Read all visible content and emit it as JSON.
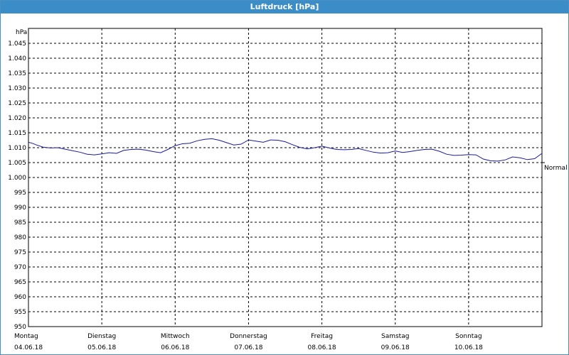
{
  "window": {
    "title": "Luftdruck [hPa]"
  },
  "chart_data": {
    "type": "line",
    "title": "Luftdruck [hPa]",
    "ylabel": "hPa",
    "xlabel": "",
    "ylim": [
      950,
      1050
    ],
    "yticks": [
      "1.045",
      "1.040",
      "1.035",
      "1.030",
      "1.025",
      "1.020",
      "1.015",
      "1.010",
      "1.005",
      "1.000",
      "995",
      "990",
      "985",
      "980",
      "975",
      "970",
      "965",
      "960",
      "955",
      "950"
    ],
    "ytick_values": [
      1045,
      1040,
      1035,
      1030,
      1025,
      1020,
      1015,
      1010,
      1005,
      1000,
      995,
      990,
      985,
      980,
      975,
      970,
      965,
      960,
      955,
      950
    ],
    "xlim": [
      0,
      7
    ],
    "xticks": [
      {
        "day": "Montag",
        "date": "04.06.18",
        "x": 0
      },
      {
        "day": "Dienstag",
        "date": "05.06.18",
        "x": 1
      },
      {
        "day": "Mittwoch",
        "date": "06.06.18",
        "x": 2
      },
      {
        "day": "Donnerstag",
        "date": "07.06.18",
        "x": 3
      },
      {
        "day": "Freitag",
        "date": "08.06.18",
        "x": 4
      },
      {
        "day": "Samstag",
        "date": "09.06.18",
        "x": 5
      },
      {
        "day": "Sonntag",
        "date": "10.06.18",
        "x": 6
      }
    ],
    "reference_line": {
      "label": "Normal",
      "value": 1005
    },
    "grid": true,
    "series": [
      {
        "color": "#1a1aa0",
        "x": [
          0,
          0.05,
          0.1,
          0.2,
          0.3,
          0.4,
          0.5,
          0.6,
          0.7,
          0.8,
          0.9,
          1.0,
          1.1,
          1.2,
          1.3,
          1.4,
          1.5,
          1.6,
          1.7,
          1.8,
          1.9,
          2.0,
          2.1,
          2.2,
          2.3,
          2.4,
          2.5,
          2.6,
          2.7,
          2.8,
          2.9,
          3.0,
          3.1,
          3.2,
          3.3,
          3.4,
          3.5,
          3.6,
          3.7,
          3.8,
          3.9,
          4.0,
          4.1,
          4.2,
          4.3,
          4.4,
          4.5,
          4.6,
          4.7,
          4.8,
          4.9,
          5.0,
          5.1,
          5.2,
          5.3,
          5.4,
          5.5,
          5.6,
          5.7,
          5.8,
          5.9,
          6.0,
          6.1,
          6.2,
          6.3,
          6.4,
          6.5,
          6.6,
          6.7,
          6.8,
          6.9,
          7.0
        ],
        "values": [
          1011.8,
          1011.5,
          1011.0,
          1010.2,
          1009.9,
          1010.0,
          1009.5,
          1009.0,
          1008.5,
          1007.8,
          1007.6,
          1007.9,
          1008.3,
          1008.1,
          1009.1,
          1009.4,
          1009.5,
          1009.2,
          1008.7,
          1008.3,
          1009.4,
          1010.7,
          1011.3,
          1011.5,
          1012.3,
          1012.8,
          1013.0,
          1012.5,
          1011.7,
          1010.9,
          1011.2,
          1012.6,
          1012.2,
          1011.8,
          1012.6,
          1012.5,
          1012.0,
          1011.0,
          1010.1,
          1009.6,
          1010.0,
          1010.5,
          1009.9,
          1009.4,
          1009.3,
          1009.4,
          1009.7,
          1009.1,
          1008.5,
          1008.2,
          1008.3,
          1008.9,
          1008.4,
          1008.7,
          1009.1,
          1009.4,
          1009.5,
          1008.8,
          1007.8,
          1007.4,
          1007.5,
          1007.7,
          1007.6,
          1006.2,
          1005.6,
          1005.5,
          1005.9,
          1006.9,
          1006.6,
          1006.0,
          1006.3,
          1008.1
        ]
      }
    ]
  }
}
